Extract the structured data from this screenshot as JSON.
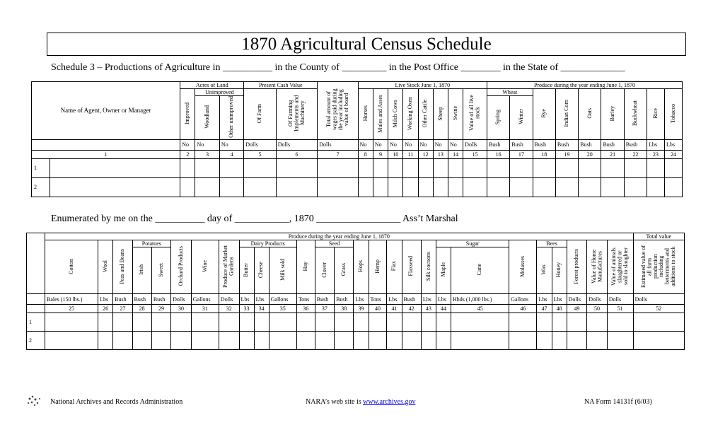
{
  "title": "1870 Agricultural Census Schedule",
  "schedule_line": "Schedule 3 – Productions of Agriculture in __________ in the County of _________ in the Post Office ________ in the State of _____________",
  "table1": {
    "name_column": {
      "label": "Name of Agent, Owner or Manager",
      "number": 1
    },
    "groups": [
      {
        "label": "Acres of Land",
        "columns": [
          {
            "label": "Improved",
            "unit": "No",
            "number": 2
          },
          {
            "label": "Unimproved",
            "columns": [
              {
                "label": "Woodland",
                "unit": "No",
                "number": 3
              },
              {
                "label": "Other unimproved",
                "unit": "No",
                "number": 4
              }
            ]
          }
        ]
      },
      {
        "label": "Present Cash Value",
        "columns": [
          {
            "label": "Of Farm",
            "unit": "Dolls",
            "number": 5
          },
          {
            "label": "Of Farming Implements and Machinery",
            "unit": "Dolls",
            "number": 6
          }
        ]
      },
      {
        "label": "Total amount of wages paid during the year including value of board",
        "unit": "Dolls",
        "number": 7
      },
      {
        "label": "Live Stock June 1, 1870",
        "columns": [
          {
            "label": "Horses",
            "unit": "No",
            "number": 8
          },
          {
            "label": "Mules and Asses",
            "unit": "No",
            "number": 9
          },
          {
            "label": "Milch Cows",
            "unit": "No",
            "number": 10
          },
          {
            "label": "Working Oxen",
            "unit": "No",
            "number": 11
          },
          {
            "label": "Other Cattle",
            "unit": "No",
            "number": 12
          },
          {
            "label": "Sheep",
            "unit": "No",
            "number": 13
          },
          {
            "label": "Swine",
            "unit": "No",
            "number": 14
          },
          {
            "label": "Value of all live stock",
            "unit": "Dolls",
            "number": 15
          }
        ]
      },
      {
        "label": "Produce during the year ending June 1, 1870",
        "columns": [
          {
            "label": "Wheat",
            "columns": [
              {
                "label": "Spring",
                "unit": "Bush",
                "number": 16
              },
              {
                "label": "Winter",
                "unit": "Bush",
                "number": 17
              }
            ]
          },
          {
            "label": "Rye",
            "unit": "Bush",
            "number": 18
          },
          {
            "label": "Indian Corn",
            "unit": "Bush",
            "number": 19
          },
          {
            "label": "Oats",
            "unit": "Bush",
            "number": 20
          },
          {
            "label": "Barley",
            "unit": "Bush",
            "number": 21
          },
          {
            "label": "Buckwheat",
            "unit": "Bush",
            "number": 22
          },
          {
            "label": "Rice",
            "unit": "Lbs",
            "number": 23
          },
          {
            "label": "Tobacco",
            "unit": "Lbs",
            "number": 24
          }
        ]
      }
    ],
    "rows": [
      1,
      2
    ]
  },
  "enumerated_line": "Enumerated by me on the __________ day of ___________, 1870 _________________ Ass’t Marshal",
  "table2": {
    "groups": [
      {
        "label": "Produce during the year ending June 1, 1870",
        "columns": [
          {
            "label": "Cotton",
            "unit": "Bales (150 lbs.)",
            "number": 25
          },
          {
            "label": "Wool",
            "unit": "Lbs",
            "number": 26
          },
          {
            "label": "Peas and Beans",
            "unit": "Bush",
            "number": 27
          },
          {
            "label": "Potatoes",
            "columns": [
              {
                "label": "Irish",
                "unit": "Bush",
                "number": 28
              },
              {
                "label": "Sweet",
                "unit": "Bush",
                "number": 29
              }
            ]
          },
          {
            "label": "Orchard Products",
            "unit": "Dolls",
            "number": 30
          },
          {
            "label": "Wine",
            "unit": "Gallons",
            "number": 31
          },
          {
            "label": "Produce of Market Gardens",
            "unit": "Dolls",
            "number": 32
          },
          {
            "label": "Dairy Products",
            "columns": [
              {
                "label": "Butter",
                "unit": "Lbs",
                "number": 33
              },
              {
                "label": "Cheese",
                "unit": "Lbs",
                "number": 34
              },
              {
                "label": "Milk sold",
                "unit": "Gallons",
                "number": 35
              }
            ]
          },
          {
            "label": "Hay",
            "unit": "Tons",
            "number": 36
          },
          {
            "label": "Seed",
            "columns": [
              {
                "label": "Clover",
                "unit": "Bush",
                "number": 37
              },
              {
                "label": "Grass",
                "unit": "Bush",
                "number": 38
              }
            ]
          },
          {
            "label": "Hops",
            "unit": "Lbs",
            "number": 39
          },
          {
            "label": "Hemp",
            "unit": "Tons",
            "number": 40
          },
          {
            "label": "Flax",
            "unit": "Lbs",
            "number": 41
          },
          {
            "label": "Flaxseed",
            "unit": "Bush",
            "number": 42
          },
          {
            "label": "Silk cocoons",
            "unit": "Lbs",
            "number": 43
          },
          {
            "label": "Sugar",
            "columns": [
              {
                "label": "Maple",
                "unit": "Lbs",
                "number": 44
              },
              {
                "label": "Cane",
                "unit": "Hhds (1,000 lbs.)",
                "number": 45
              }
            ]
          },
          {
            "label": "Molasses",
            "unit": "Gallons",
            "number": 46
          },
          {
            "label": "Bees",
            "columns": [
              {
                "label": "Wax",
                "unit": "Lbs",
                "number": 47
              },
              {
                "label": "Honey",
                "unit": "Lbs",
                "number": 48
              }
            ]
          },
          {
            "label": "Forest products",
            "unit": "Dolls",
            "number": 49
          },
          {
            "label": "Value of Home Manufactures",
            "unit": "Dolls",
            "number": 50
          },
          {
            "label": "Value of animals slaughtered or sold to slaughter",
            "unit": "Dolls",
            "number": 51
          }
        ]
      },
      {
        "label": "Total value",
        "columns": [
          {
            "label": "Estimated value of all farm production including betterments and additions to stock",
            "unit": "Dolls",
            "number": 52
          }
        ]
      }
    ],
    "rows": [
      1,
      2
    ]
  },
  "footer": {
    "left": "National Archives and Records Administration",
    "center": "NARA’s web site is",
    "link": "www.archives.gov",
    "right": "NA Form 14131f (6/03)"
  }
}
